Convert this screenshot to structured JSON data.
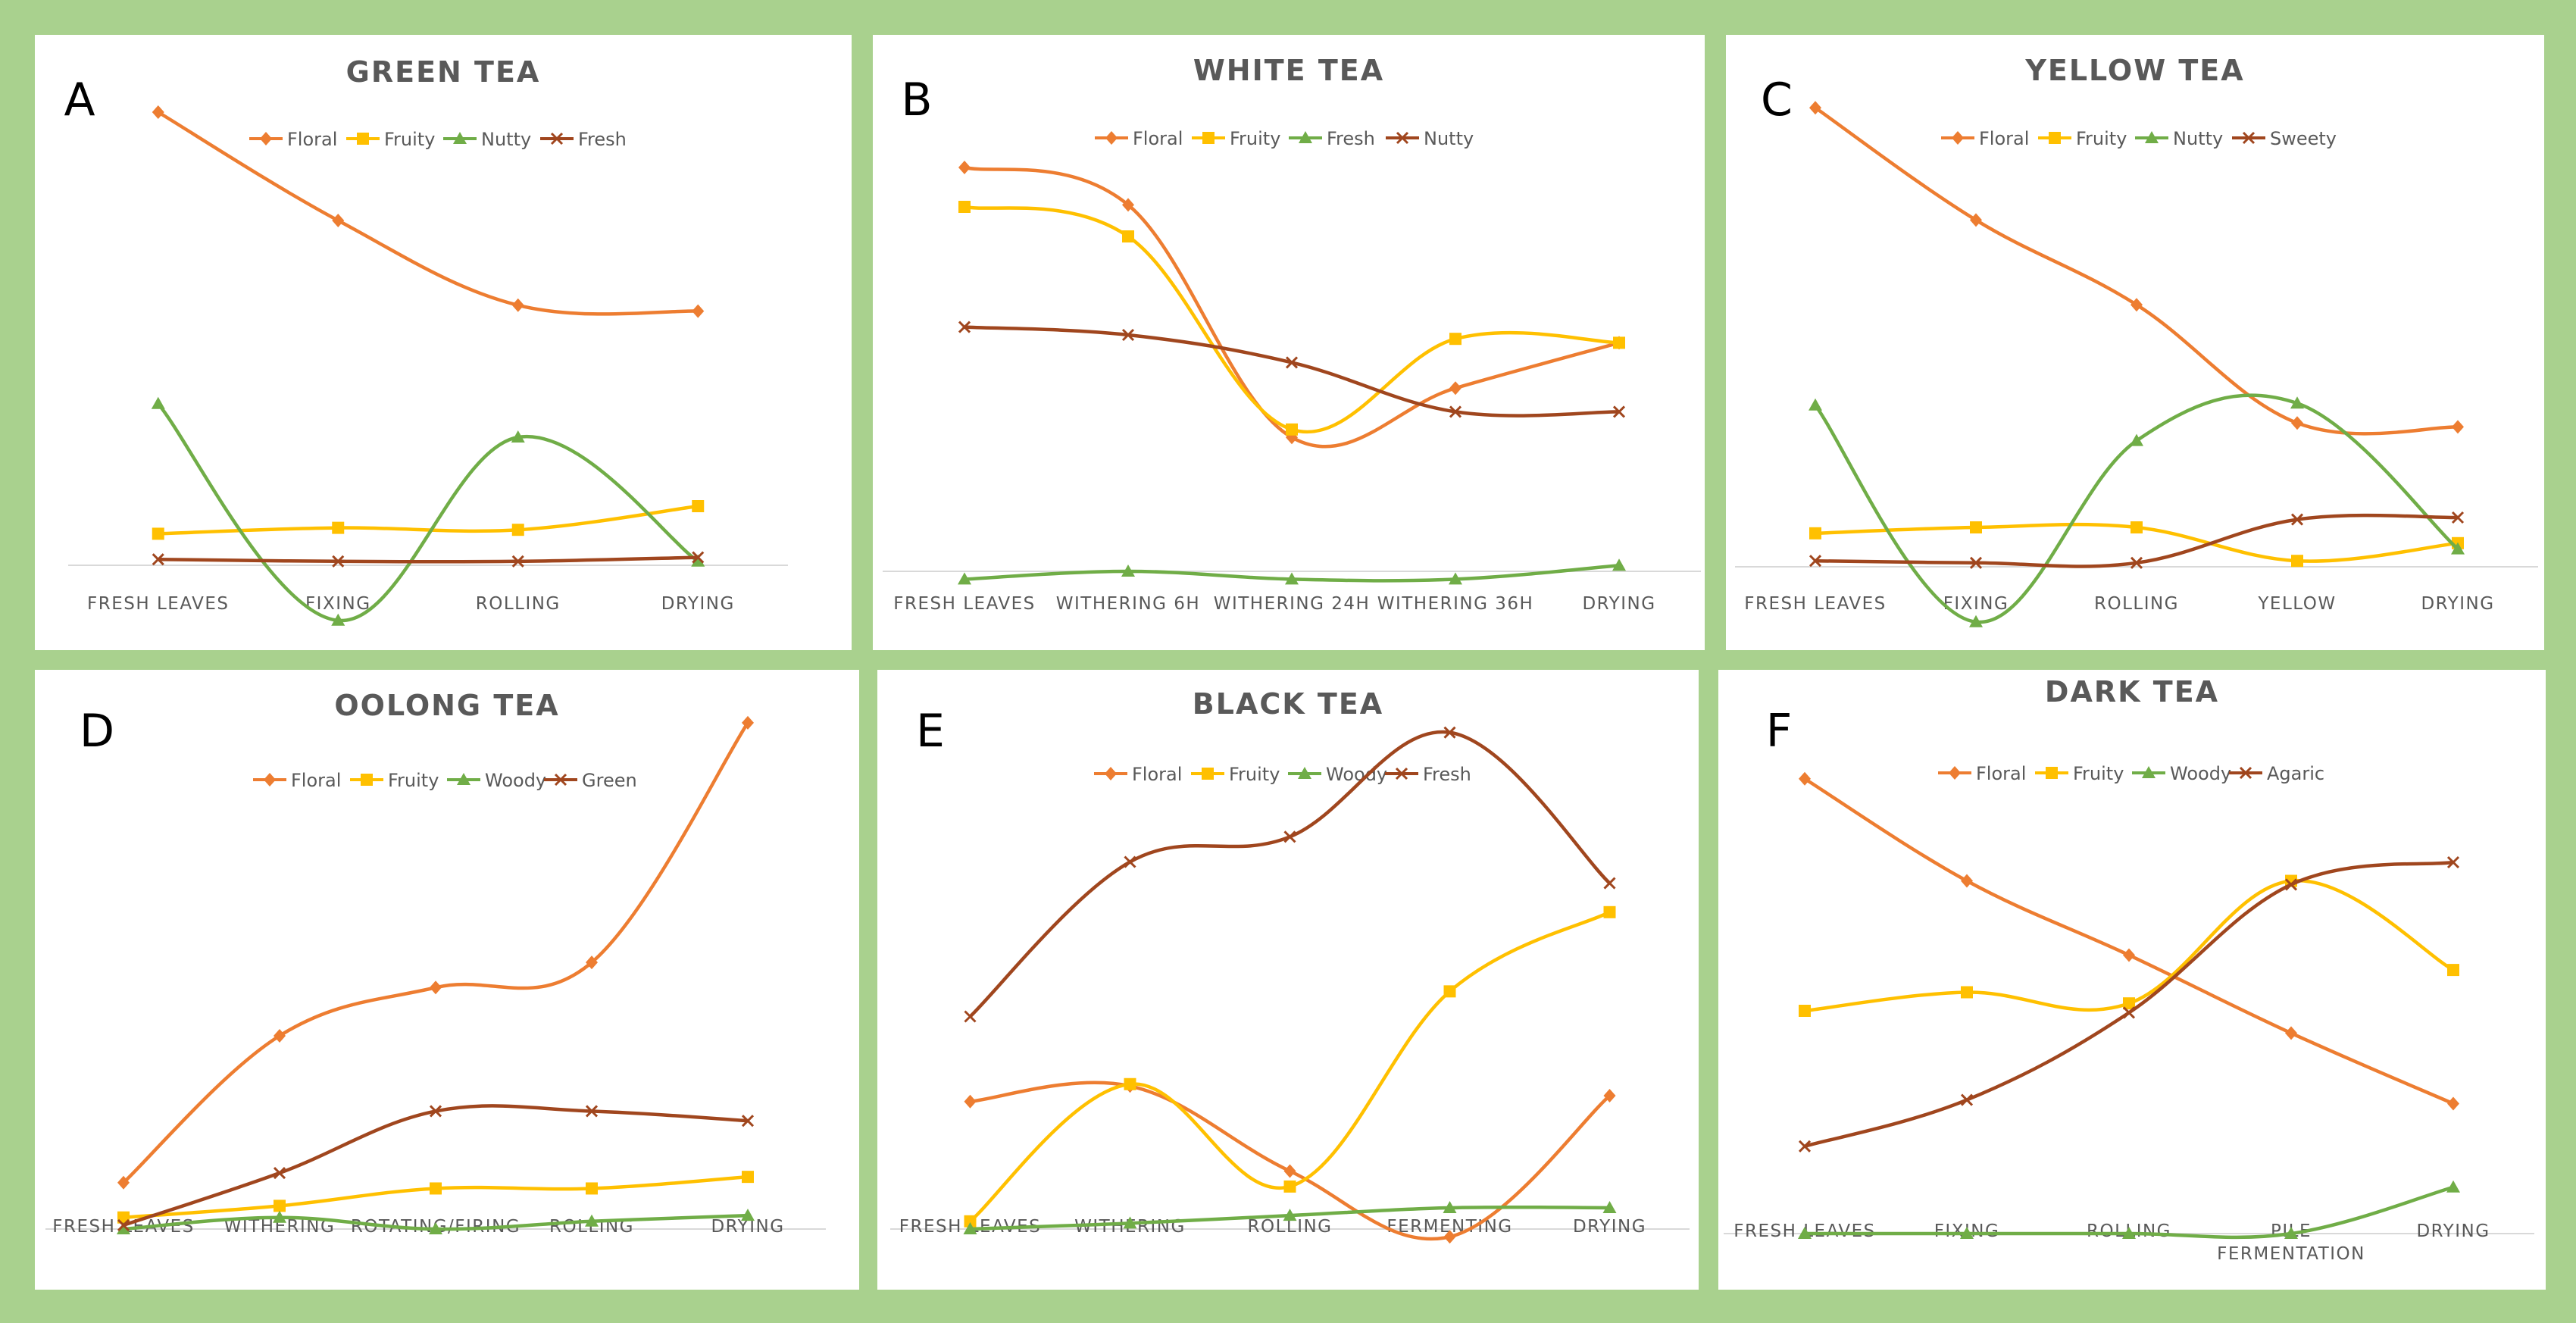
{
  "figure": {
    "border_color": "#a9d18e",
    "panel_bg": "#ffffff",
    "axis_color": "#d9d9d9",
    "text_color": "#595959",
    "series_colors": {
      "orange": "#ed7d31",
      "yellow": "#ffc000",
      "green": "#70ad47",
      "brown": "#a0461e"
    }
  },
  "chart_data": [
    {
      "letter": "A",
      "title": "GREEN TEA",
      "type": "line",
      "categories": [
        "FRESH LEAVES",
        "FIXING",
        "ROLLING",
        "DRYING"
      ],
      "ylim": [
        0,
        2.6
      ],
      "grid": false,
      "legend_position": "top",
      "series": [
        {
          "name": "Floral",
          "marker": "diamond",
          "color": "orange",
          "values": [
            2.3,
            1.75,
            1.32,
            1.29
          ]
        },
        {
          "name": "Fruity",
          "marker": "square",
          "color": "yellow",
          "values": [
            0.16,
            0.19,
            0.18,
            0.3
          ]
        },
        {
          "name": "Nutty",
          "marker": "triangle",
          "color": "green",
          "values": [
            0.82,
            -0.28,
            0.65,
            0.02
          ]
        },
        {
          "name": "Fresh",
          "marker": "x",
          "color": "brown",
          "values": [
            0.03,
            0.02,
            0.02,
            0.04
          ]
        }
      ]
    },
    {
      "letter": "B",
      "title": "WHITE TEA",
      "type": "line",
      "categories": [
        "FRESH LEAVES",
        "WITHERING   6H",
        "WITHERING 24H",
        "WITHERING 36H",
        "DRYING"
      ],
      "ylim": [
        0,
        2.6
      ],
      "grid": false,
      "legend_position": "top",
      "series": [
        {
          "name": "Floral",
          "marker": "diamond",
          "color": "orange",
          "values": [
            2.05,
            1.86,
            0.68,
            0.93,
            1.16
          ]
        },
        {
          "name": "Fruity",
          "marker": "square",
          "color": "yellow",
          "values": [
            1.85,
            1.7,
            0.72,
            1.18,
            1.16
          ]
        },
        {
          "name": "Fresh",
          "marker": "triangle",
          "color": "green",
          "values": [
            -0.04,
            0.0,
            -0.04,
            -0.04,
            0.03
          ]
        },
        {
          "name": "Nutty",
          "marker": "x",
          "color": "brown",
          "values": [
            1.24,
            1.2,
            1.06,
            0.81,
            0.81
          ]
        }
      ]
    },
    {
      "letter": "C",
      "title": "YELLOW TEA",
      "type": "line",
      "categories": [
        "FRESH LEAVES",
        "FIXING",
        "ROLLING",
        "YELLOW",
        "DRYING"
      ],
      "ylim": [
        0,
        2.6
      ],
      "grid": false,
      "legend_position": "top",
      "series": [
        {
          "name": "Floral",
          "marker": "diamond",
          "color": "orange",
          "values": [
            2.33,
            1.76,
            1.33,
            0.73,
            0.71
          ]
        },
        {
          "name": "Fruity",
          "marker": "square",
          "color": "yellow",
          "values": [
            0.17,
            0.2,
            0.2,
            0.03,
            0.12
          ]
        },
        {
          "name": "Nutty",
          "marker": "triangle",
          "color": "green",
          "values": [
            0.82,
            -0.28,
            0.64,
            0.83,
            0.09
          ]
        },
        {
          "name": "Sweety",
          "marker": "x",
          "color": "brown",
          "values": [
            0.03,
            0.02,
            0.02,
            0.24,
            0.25
          ]
        }
      ]
    },
    {
      "letter": "D",
      "title": "OOLONG TEA",
      "type": "line",
      "categories": [
        "FRESH LEAVES",
        "WITHERING",
        "ROTATING/FIRING",
        "ROLLING",
        "DRYING"
      ],
      "ylim": [
        0,
        2.6
      ],
      "grid": false,
      "legend_position": "top",
      "series": [
        {
          "name": "Floral",
          "marker": "diamond",
          "color": "orange",
          "values": [
            0.24,
            1.0,
            1.25,
            1.38,
            2.62
          ]
        },
        {
          "name": "Fruity",
          "marker": "square",
          "color": "yellow",
          "values": [
            0.06,
            0.12,
            0.21,
            0.21,
            0.27
          ]
        },
        {
          "name": "Woody",
          "marker": "triangle",
          "color": "green",
          "values": [
            0.0,
            0.06,
            0.0,
            0.04,
            0.07
          ]
        },
        {
          "name": "Green",
          "marker": "x",
          "color": "brown",
          "values": [
            0.02,
            0.29,
            0.61,
            0.61,
            0.56
          ]
        }
      ]
    },
    {
      "letter": "E",
      "title": "BLACK TEA",
      "type": "line",
      "categories": [
        "FRESH LEAVES",
        "WITHERING",
        "ROLLING",
        "FERMENTING",
        "DRYING"
      ],
      "ylim": [
        0,
        2.6
      ],
      "grid": false,
      "legend_position": "top",
      "series": [
        {
          "name": "Floral",
          "marker": "diamond",
          "color": "orange",
          "values": [
            0.66,
            0.74,
            0.3,
            -0.04,
            0.69
          ]
        },
        {
          "name": "Fruity",
          "marker": "square",
          "color": "yellow",
          "values": [
            0.04,
            0.75,
            0.22,
            1.23,
            1.64
          ]
        },
        {
          "name": "Woody",
          "marker": "triangle",
          "color": "green",
          "values": [
            0.0,
            0.03,
            0.07,
            0.11,
            0.11
          ]
        },
        {
          "name": "Fresh",
          "marker": "x",
          "color": "brown",
          "values": [
            1.1,
            1.9,
            2.03,
            2.57,
            1.79
          ]
        }
      ]
    },
    {
      "letter": "F",
      "title": "DARK TEA",
      "type": "line",
      "categories": [
        "FRESH LEAVES",
        "FIXING",
        "ROLLING",
        "PILE FERMENTATION",
        "DRYING"
      ],
      "ylim": [
        0,
        2.6
      ],
      "grid": false,
      "legend_position": "top",
      "series": [
        {
          "name": "Floral",
          "marker": "diamond",
          "color": "orange",
          "values": [
            2.45,
            1.9,
            1.5,
            1.08,
            0.7
          ]
        },
        {
          "name": "Fruity",
          "marker": "square",
          "color": "yellow",
          "values": [
            1.2,
            1.3,
            1.24,
            1.9,
            1.42
          ]
        },
        {
          "name": "Woody",
          "marker": "triangle",
          "color": "green",
          "values": [
            0.0,
            0.0,
            0.0,
            0.0,
            0.25
          ]
        },
        {
          "name": "Agaric",
          "marker": "x",
          "color": "brown",
          "values": [
            0.47,
            0.72,
            1.19,
            1.88,
            2.0
          ]
        }
      ]
    }
  ]
}
